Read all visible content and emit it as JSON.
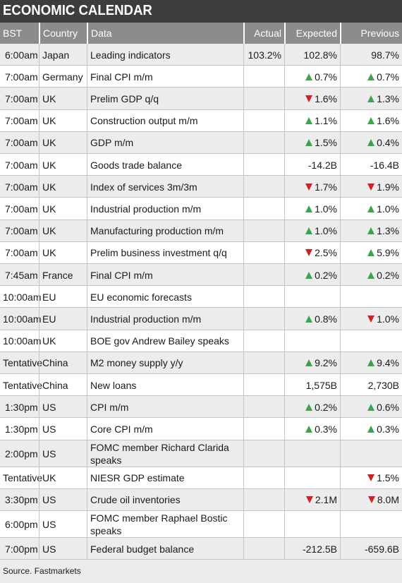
{
  "title": "ECONOMIC CALENDAR",
  "headers": [
    "BST",
    "Country",
    "Data",
    "Actual",
    "Expected",
    "Previous"
  ],
  "colors": {
    "title_bg": "#3d3d3d",
    "header_bg": "#8c8c8c",
    "up": "#3fa34d",
    "down": "#d02020"
  },
  "rows": [
    {
      "time": "6:00am",
      "country": "Japan",
      "data": "Leading indicators",
      "actual": "103.2%",
      "expected": "102.8%",
      "expected_dir": "",
      "previous": "98.7%",
      "previous_dir": ""
    },
    {
      "time": "7:00am",
      "country": "Germany",
      "data": "Final CPI m/m",
      "actual": "",
      "expected": "0.7%",
      "expected_dir": "up",
      "previous": "0.7%",
      "previous_dir": "up"
    },
    {
      "time": "7:00am",
      "country": "UK",
      "data": "Prelim GDP q/q",
      "actual": "",
      "expected": "1.6%",
      "expected_dir": "down",
      "previous": "1.3%",
      "previous_dir": "up"
    },
    {
      "time": "7:00am",
      "country": "UK",
      "data": "Construction output m/m",
      "actual": "",
      "expected": "1.1%",
      "expected_dir": "up",
      "previous": "1.6%",
      "previous_dir": "up"
    },
    {
      "time": "7:00am",
      "country": "UK",
      "data": "GDP m/m",
      "actual": "",
      "expected": "1.5%",
      "expected_dir": "up",
      "previous": "0.4%",
      "previous_dir": "up"
    },
    {
      "time": "7:00am",
      "country": "UK",
      "data": "Goods trade balance",
      "actual": "",
      "expected": "-14.2B",
      "expected_dir": "",
      "previous": "-16.4B",
      "previous_dir": ""
    },
    {
      "time": "7:00am",
      "country": "UK",
      "data": "Index of services 3m/3m",
      "actual": "",
      "expected": "1.7%",
      "expected_dir": "down",
      "previous": "1.9%",
      "previous_dir": "down"
    },
    {
      "time": "7:00am",
      "country": "UK",
      "data": "Industrial production m/m",
      "actual": "",
      "expected": "1.0%",
      "expected_dir": "up",
      "previous": "1.0%",
      "previous_dir": "up"
    },
    {
      "time": "7:00am",
      "country": "UK",
      "data": "Manufacturing production m/m",
      "actual": "",
      "expected": "1.0%",
      "expected_dir": "up",
      "previous": "1.3%",
      "previous_dir": "up"
    },
    {
      "time": "7:00am",
      "country": "UK",
      "data": "Prelim business investment q/q",
      "actual": "",
      "expected": "2.5%",
      "expected_dir": "down",
      "previous": "5.9%",
      "previous_dir": "up"
    },
    {
      "time": "7:45am",
      "country": "France",
      "data": "Final CPI m/m",
      "actual": "",
      "expected": "0.2%",
      "expected_dir": "up",
      "previous": "0.2%",
      "previous_dir": "up"
    },
    {
      "time": "10:00am",
      "country": "EU",
      "data": "EU economic forecasts",
      "actual": "",
      "expected": "",
      "expected_dir": "",
      "previous": "",
      "previous_dir": ""
    },
    {
      "time": "10:00am",
      "country": "EU",
      "data": "Industrial production m/m",
      "actual": "",
      "expected": "0.8%",
      "expected_dir": "up",
      "previous": "1.0%",
      "previous_dir": "down"
    },
    {
      "time": "10:00am",
      "country": "UK",
      "data": "BOE gov Andrew Bailey speaks",
      "actual": "",
      "expected": "",
      "expected_dir": "",
      "previous": "",
      "previous_dir": ""
    },
    {
      "time": "Tentative",
      "country": "China",
      "data": "M2 money supply y/y",
      "actual": "",
      "expected": "9.2%",
      "expected_dir": "up",
      "previous": "9.4%",
      "previous_dir": "up"
    },
    {
      "time": "Tentative",
      "country": "China",
      "data": "New loans",
      "actual": "",
      "expected": "1,575B",
      "expected_dir": "",
      "previous": "2,730B",
      "previous_dir": ""
    },
    {
      "time": "1:30pm",
      "country": "US",
      "data": "CPI m/m",
      "actual": "",
      "expected": "0.2%",
      "expected_dir": "up",
      "previous": "0.6%",
      "previous_dir": "up"
    },
    {
      "time": "1:30pm",
      "country": "US",
      "data": "Core CPI m/m",
      "actual": "",
      "expected": "0.3%",
      "expected_dir": "up",
      "previous": "0.3%",
      "previous_dir": "up"
    },
    {
      "time": "2:00pm",
      "country": "US",
      "data": "FOMC member Richard Clarida speaks",
      "actual": "",
      "expected": "",
      "expected_dir": "",
      "previous": "",
      "previous_dir": ""
    },
    {
      "time": "Tentative",
      "country": "UK",
      "data": "NIESR GDP estimate",
      "actual": "",
      "expected": "",
      "expected_dir": "",
      "previous": "1.5%",
      "previous_dir": "down"
    },
    {
      "time": "3:30pm",
      "country": "US",
      "data": "Crude oil inventories",
      "actual": "",
      "expected": "2.1M",
      "expected_dir": "down",
      "previous": "8.0M",
      "previous_dir": "down"
    },
    {
      "time": "6:00pm",
      "country": "US",
      "data": "FOMC member Raphael Bostic speaks",
      "actual": "",
      "expected": "",
      "expected_dir": "",
      "previous": "",
      "previous_dir": ""
    },
    {
      "time": "7:00pm",
      "country": "US",
      "data": "Federal budget balance",
      "actual": "",
      "expected": "-212.5B",
      "expected_dir": "",
      "previous": "-659.6B",
      "previous_dir": ""
    }
  ],
  "source": "Source. Fastmarkets"
}
